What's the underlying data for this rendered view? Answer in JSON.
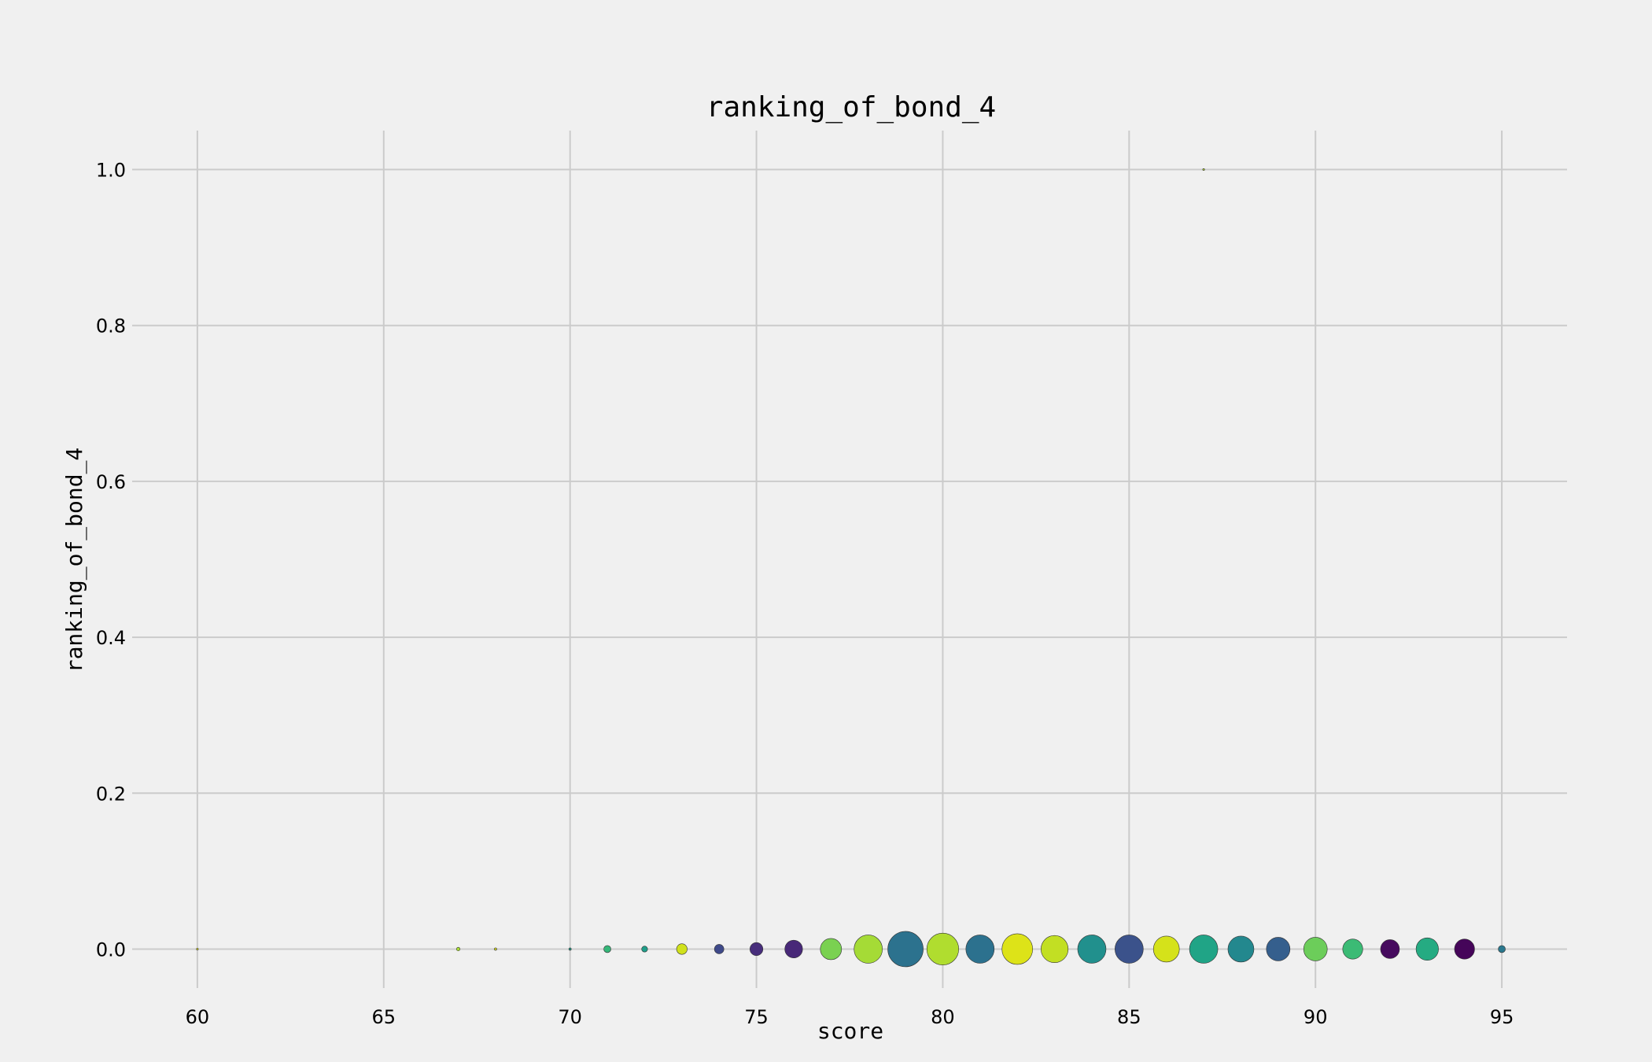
{
  "chart_data": {
    "type": "scatter",
    "title": "ranking_of_bond_4",
    "xlabel": "score",
    "ylabel": "ranking_of_bond_4",
    "xlim": [
      58.25,
      96.75
    ],
    "ylim": [
      -0.05,
      1.05
    ],
    "xticks": [
      60,
      65,
      70,
      75,
      80,
      85,
      90,
      95
    ],
    "yticks": [
      0.0,
      0.2,
      0.4,
      0.6,
      0.8,
      1.0
    ],
    "ytick_labels": [
      "0.0",
      "0.2",
      "0.4",
      "0.6",
      "0.8",
      "1.0"
    ],
    "xtick_labels": [
      "60",
      "65",
      "70",
      "75",
      "80",
      "85",
      "90",
      "95"
    ],
    "grid": true,
    "points": [
      {
        "x": 60,
        "y": 0,
        "size": 1,
        "color": "#e5e419"
      },
      {
        "x": 67,
        "y": 0,
        "size": 3,
        "color": "#a8db34"
      },
      {
        "x": 68,
        "y": 0,
        "size": 2,
        "color": "#dde318"
      },
      {
        "x": 70,
        "y": 0,
        "size": 2,
        "color": "#1f9e89"
      },
      {
        "x": 71,
        "y": 0,
        "size": 6,
        "color": "#35b779"
      },
      {
        "x": 72,
        "y": 0,
        "size": 5,
        "color": "#1f9e89"
      },
      {
        "x": 73,
        "y": 0,
        "size": 9,
        "color": "#d0e11c"
      },
      {
        "x": 74,
        "y": 0,
        "size": 8,
        "color": "#3e4989"
      },
      {
        "x": 75,
        "y": 0,
        "size": 11,
        "color": "#472d7b"
      },
      {
        "x": 76,
        "y": 0,
        "size": 15,
        "color": "#482878"
      },
      {
        "x": 77,
        "y": 0,
        "size": 18,
        "color": "#7ad151"
      },
      {
        "x": 78,
        "y": 0,
        "size": 24,
        "color": "#a5db36"
      },
      {
        "x": 79,
        "y": 0,
        "size": 30,
        "color": "#2c728e"
      },
      {
        "x": 80,
        "y": 0,
        "size": 27,
        "color": "#b0dd2f"
      },
      {
        "x": 81,
        "y": 0,
        "size": 24,
        "color": "#2c718e"
      },
      {
        "x": 82,
        "y": 0,
        "size": 26,
        "color": "#dde318"
      },
      {
        "x": 83,
        "y": 0,
        "size": 23,
        "color": "#c2df23"
      },
      {
        "x": 84,
        "y": 0,
        "size": 24,
        "color": "#21908d"
      },
      {
        "x": 85,
        "y": 0,
        "size": 24,
        "color": "#3b528b"
      },
      {
        "x": 86,
        "y": 0,
        "size": 22,
        "color": "#d5e21a"
      },
      {
        "x": 87,
        "y": 0,
        "size": 24,
        "color": "#20a486"
      },
      {
        "x": 87,
        "y": 1,
        "size": 1,
        "color": "#b5de2b"
      },
      {
        "x": 88,
        "y": 0,
        "size": 22,
        "color": "#23888e"
      },
      {
        "x": 89,
        "y": 0,
        "size": 20,
        "color": "#355f8d"
      },
      {
        "x": 90,
        "y": 0,
        "size": 20,
        "color": "#6ccd5a"
      },
      {
        "x": 91,
        "y": 0,
        "size": 17,
        "color": "#3bbb75"
      },
      {
        "x": 92,
        "y": 0,
        "size": 16,
        "color": "#460b5e"
      },
      {
        "x": 93,
        "y": 0,
        "size": 19,
        "color": "#25ab82"
      },
      {
        "x": 94,
        "y": 0,
        "size": 17,
        "color": "#450559"
      },
      {
        "x": 95,
        "y": 0,
        "size": 6,
        "color": "#2a788e"
      }
    ]
  }
}
